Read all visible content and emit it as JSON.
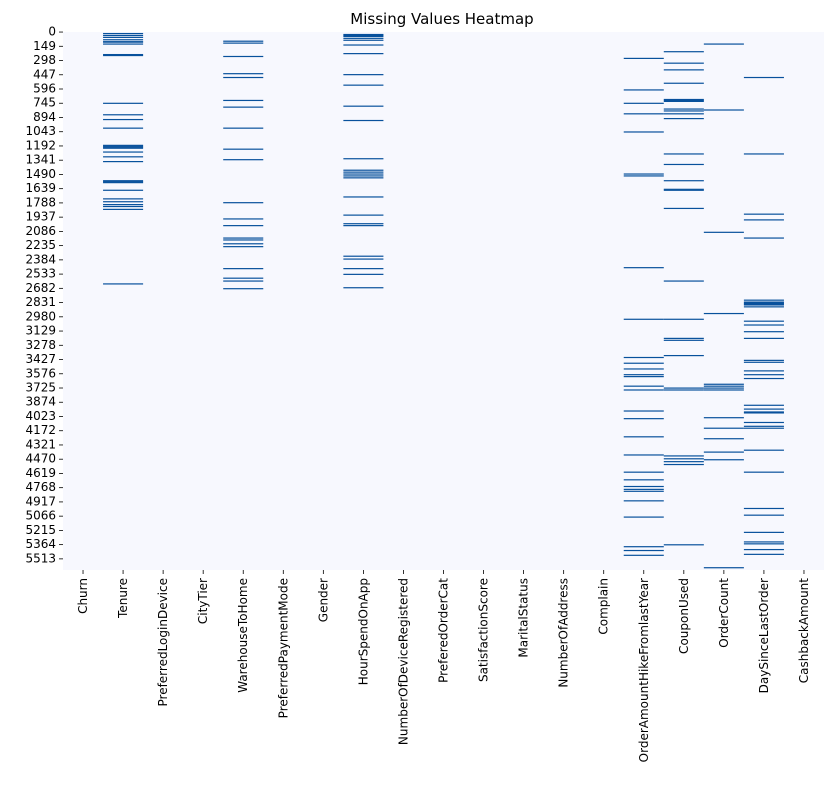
{
  "chart_data": {
    "type": "heatmap",
    "title": "Missing Values Heatmap",
    "xlabel": "",
    "ylabel": "",
    "n_rows": 5630,
    "background_color": "#f7f8fe",
    "missing_color": "#08519c",
    "columns": [
      "Churn",
      "Tenure",
      "PreferredLoginDevice",
      "CityTier",
      "WarehouseToHome",
      "PreferredPaymentMode",
      "Gender",
      "HourSpendOnApp",
      "NumberOfDeviceRegistered",
      "PreferedOrderCat",
      "SatisfactionScore",
      "MaritalStatus",
      "NumberOfAddress",
      "Complain",
      "OrderAmountHikeFromlastYear",
      "CouponUsed",
      "OrderCount",
      "DaySinceLastOrder",
      "CashbackAmount"
    ],
    "row_ticks": [
      0,
      149,
      298,
      447,
      596,
      745,
      894,
      1043,
      1192,
      1341,
      1490,
      1639,
      1788,
      1937,
      2086,
      2235,
      2384,
      2533,
      2682,
      2831,
      2980,
      3129,
      3278,
      3427,
      3576,
      3725,
      3874,
      4023,
      4172,
      4321,
      4470,
      4619,
      4768,
      4917,
      5066,
      5215,
      5364,
      5513
    ],
    "missing_rows": {
      "Tenure": [
        10,
        30,
        50,
        75,
        95,
        100,
        120,
        230,
        240,
        740,
        860,
        910,
        1000,
        1180,
        1190,
        1200,
        1210,
        1250,
        1300,
        1350,
        1550,
        1560,
        1570,
        1650,
        1740,
        1770,
        1800,
        1820,
        1850,
        2630
      ],
      "WarehouseToHome": [
        90,
        110,
        250,
        430,
        470,
        710,
        780,
        1000,
        1220,
        1330,
        1780,
        1950,
        2020,
        2150,
        2170,
        2210,
        2240,
        2470,
        2570,
        2600,
        2680
      ],
      "HourSpendOnApp": [
        20,
        30,
        40,
        60,
        80,
        130,
        220,
        440,
        550,
        770,
        920,
        1320,
        1440,
        1460,
        1480,
        1500,
        1520,
        1720,
        1910,
        2000,
        2020,
        2340,
        2370,
        2470,
        2530,
        2670
      ],
      "OrderAmountHikeFromlastYear": [
        270,
        600,
        740,
        850,
        1040,
        1480,
        1500,
        2460,
        3000,
        3400,
        3460,
        3520,
        3580,
        3600,
        3700,
        3740,
        3960,
        4040,
        4230,
        4420,
        4600,
        4680,
        4750,
        4780,
        4800,
        4900,
        5070,
        5380,
        5420,
        5470
      ],
      "CouponUsed": [
        200,
        320,
        390,
        530,
        700,
        710,
        720,
        800,
        820,
        850,
        900,
        1270,
        1380,
        1550,
        1640,
        1650,
        1840,
        2600,
        3000,
        3200,
        3220,
        3380,
        3720,
        3740,
        4430,
        4460,
        4490,
        4520,
        5360
      ],
      "OrderCount": [
        120,
        810,
        2090,
        2940,
        3680,
        3700,
        3720,
        3740,
        4030,
        4140,
        4250,
        4390,
        4470,
        5600
      ],
      "DaySinceLastOrder": [
        470,
        1270,
        1900,
        1960,
        2150,
        2800,
        2820,
        2830,
        2840,
        2850,
        2870,
        3020,
        3060,
        3130,
        3200,
        3430,
        3450,
        3540,
        3580,
        3620,
        3900,
        3940,
        3970,
        3980,
        4080,
        4120,
        4140,
        4370,
        4600,
        4980,
        5050,
        5230,
        5330,
        5350,
        5410,
        5460
      ]
    }
  }
}
